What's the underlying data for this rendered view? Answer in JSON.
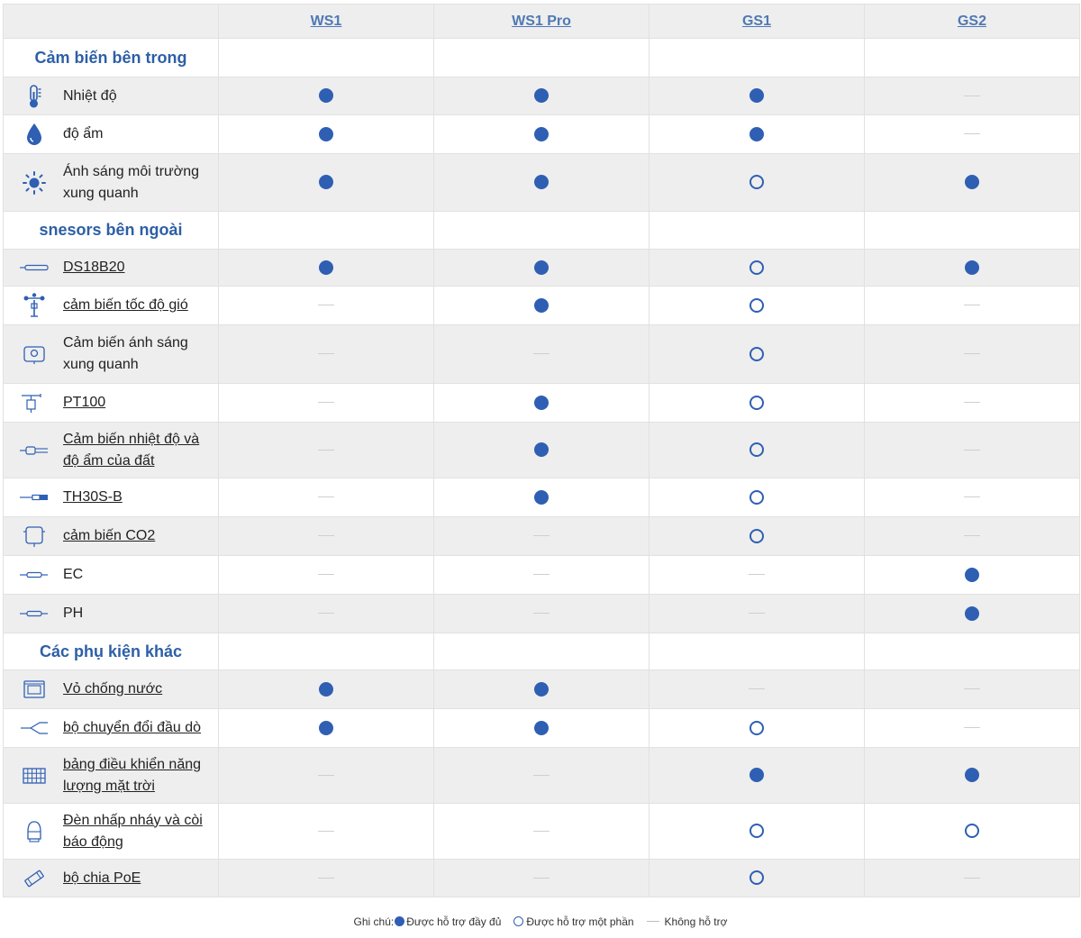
{
  "header": {
    "products": [
      "WS1",
      "WS1 Pro",
      "GS1",
      "GS2"
    ]
  },
  "sections": [
    {
      "title": "Cảm biến bên trong",
      "rows": [
        {
          "label": "Nhiệt độ",
          "icon": "thermometer-icon",
          "link": false,
          "support": [
            "full",
            "full",
            "full",
            "none"
          ]
        },
        {
          "label": "độ ẩm",
          "icon": "water-drop-icon",
          "link": false,
          "support": [
            "full",
            "full",
            "full",
            "none"
          ]
        },
        {
          "label": "Ánh sáng môi trường xung quanh",
          "icon": "sun-icon",
          "link": false,
          "support": [
            "full",
            "full",
            "partial",
            "full"
          ]
        }
      ]
    },
    {
      "title": "snesors bên ngoài",
      "rows": [
        {
          "label": "DS18B20",
          "icon": "probe-icon",
          "link": true,
          "support": [
            "full",
            "full",
            "partial",
            "full"
          ]
        },
        {
          "label": "cảm biến tốc độ gió",
          "icon": "anemometer-icon",
          "link": true,
          "support": [
            "none",
            "full",
            "partial",
            "none"
          ]
        },
        {
          "label": "Cảm biến ánh sáng xung quanh",
          "icon": "light-sensor-icon",
          "link": false,
          "support": [
            "none",
            "none",
            "partial",
            "none"
          ]
        },
        {
          "label": "PT100",
          "icon": "pt100-icon",
          "link": true,
          "support": [
            "none",
            "full",
            "partial",
            "none"
          ]
        },
        {
          "label": "Cảm biến nhiệt độ và độ ẩm của đất",
          "icon": "soil-sensor-icon",
          "link": true,
          "support": [
            "none",
            "full",
            "partial",
            "none"
          ]
        },
        {
          "label": "TH30S-B",
          "icon": "th30s-probe-icon",
          "link": true,
          "support": [
            "none",
            "full",
            "partial",
            "none"
          ]
        },
        {
          "label": "cảm biến CO2",
          "icon": "co2-sensor-icon",
          "link": true,
          "support": [
            "none",
            "none",
            "partial",
            "none"
          ]
        },
        {
          "label": "EC",
          "icon": "ec-probe-icon",
          "link": false,
          "support": [
            "none",
            "none",
            "none",
            "full"
          ]
        },
        {
          "label": "PH",
          "icon": "ph-probe-icon",
          "link": false,
          "support": [
            "none",
            "none",
            "none",
            "full"
          ]
        }
      ]
    },
    {
      "title": "Các phụ kiện khác",
      "rows": [
        {
          "label": "Vỏ chống nước",
          "icon": "enclosure-icon",
          "link": true,
          "support": [
            "full",
            "full",
            "none",
            "none"
          ]
        },
        {
          "label": "bộ chuyển đổi đầu dò",
          "icon": "splitter-icon",
          "link": true,
          "support": [
            "full",
            "full",
            "partial",
            "none"
          ]
        },
        {
          "label": "bảng điều khiển năng lượng mặt trời",
          "icon": "solar-panel-icon",
          "link": true,
          "support": [
            "none",
            "none",
            "full",
            "full"
          ]
        },
        {
          "label": "Đèn nhấp nháy và còi báo động",
          "icon": "alarm-light-icon",
          "link": true,
          "support": [
            "none",
            "none",
            "partial",
            "partial"
          ]
        },
        {
          "label": "bộ chia PoE",
          "icon": "poe-splitter-icon",
          "link": true,
          "support": [
            "none",
            "none",
            "partial",
            "none"
          ]
        }
      ]
    }
  ],
  "legend": {
    "prefix": "Ghi chú:",
    "full": "Được hỗ trợ đầy đủ",
    "partial": "Được hỗ trợ một phần",
    "none": "Không hỗ trợ"
  },
  "colors": {
    "accent": "#2f5fb3",
    "section_title": "#2d5fa6",
    "header_link": "#4f79b5",
    "row_shade": "#eeeeee",
    "border": "#e1e1e1"
  }
}
